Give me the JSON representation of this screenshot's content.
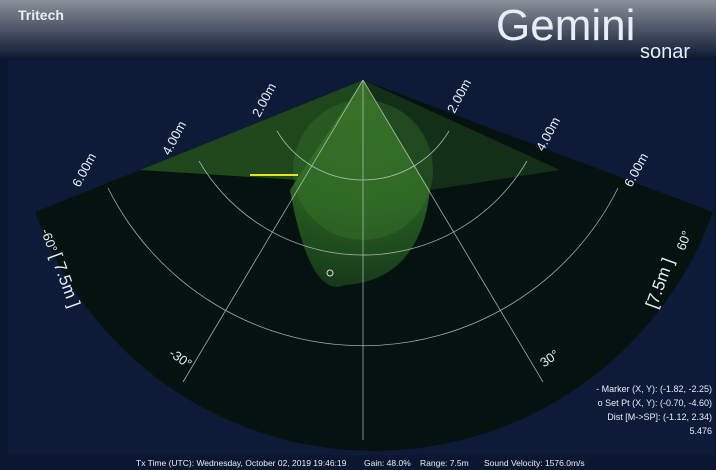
{
  "header": {
    "brand": "Tritech",
    "product": "Gemini",
    "product_sub": "sonar"
  },
  "range_labels": {
    "left": [
      "2.00m",
      "4.00m",
      "6.00m"
    ],
    "right": [
      "2.00m",
      "4.00m",
      "6.00m"
    ]
  },
  "angle_labels": {
    "left_outer": "-60°",
    "right_outer": "60°",
    "left_inner": "-30°",
    "right_inner": "30°"
  },
  "range_badges": {
    "left": "[ 7.5m ]",
    "right": "[7.5m ]"
  },
  "readout": [
    "- Marker (X, Y): (-1.82, -2.25)",
    "o Set Pt (X, Y): (-0.70, -4.60)",
    "Dist [M->SP]: (-1.12, 2.34)",
    "5.476"
  ],
  "status": {
    "tx_time": "Tx Time (UTC): Wednesday, October 02, 2019 19:46:19",
    "gain": "Gain: 48.0%",
    "range": "Range: 7.5m",
    "sound_velocity": "Sound Velocity: 1576.0m/s"
  }
}
